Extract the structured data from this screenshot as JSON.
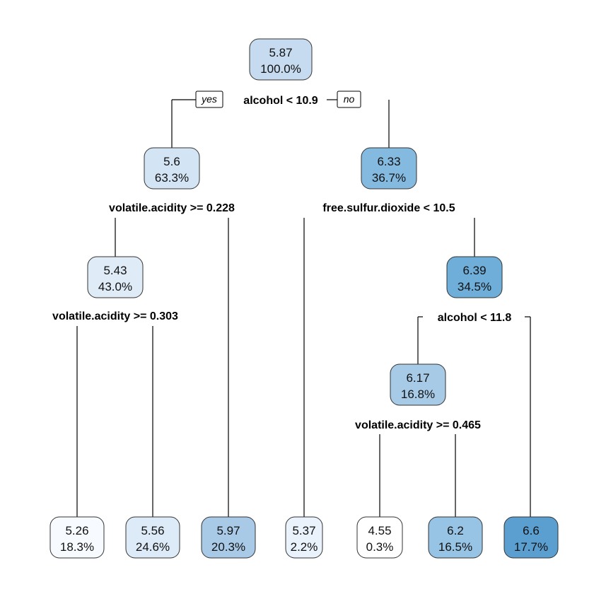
{
  "tree": {
    "branch_labels": {
      "yes": "yes",
      "no": "no"
    },
    "nodes": [
      {
        "id": "n1",
        "value": "5.87",
        "percent": "100.0%",
        "color": "#c6dbef"
      },
      {
        "id": "n2",
        "value": "5.6",
        "percent": "63.3%",
        "color": "#d3e4f4"
      },
      {
        "id": "n3",
        "value": "6.33",
        "percent": "36.7%",
        "color": "#84bae0"
      },
      {
        "id": "n4",
        "value": "5.43",
        "percent": "43.0%",
        "color": "#dfebf7"
      },
      {
        "id": "n7",
        "value": "6.39",
        "percent": "34.5%",
        "color": "#6eaed9"
      },
      {
        "id": "n14",
        "value": "6.17",
        "percent": "16.8%",
        "color": "#a7cae6"
      },
      {
        "id": "l1",
        "value": "5.26",
        "percent": "18.3%",
        "color": "#f7fbff"
      },
      {
        "id": "l2",
        "value": "5.56",
        "percent": "24.6%",
        "color": "#ddeaf7"
      },
      {
        "id": "l3",
        "value": "5.97",
        "percent": "20.3%",
        "color": "#a9cae6"
      },
      {
        "id": "l4",
        "value": "5.37",
        "percent": "2.2%",
        "color": "#eaf2fb"
      },
      {
        "id": "l5",
        "value": "4.55",
        "percent": "0.3%",
        "color": "#ffffff"
      },
      {
        "id": "l6",
        "value": "6.2",
        "percent": "16.5%",
        "color": "#97c3e4"
      },
      {
        "id": "l7",
        "value": "6.6",
        "percent": "17.7%",
        "color": "#5b9fd1"
      }
    ],
    "splits": [
      {
        "id": "s1",
        "label": "alcohol < 10.9"
      },
      {
        "id": "s2",
        "label": "volatile.acidity >= 0.228"
      },
      {
        "id": "s3",
        "label": "free.sulfur.dioxide < 10.5"
      },
      {
        "id": "s4",
        "label": "volatile.acidity >= 0.303"
      },
      {
        "id": "s5",
        "label": "alcohol < 11.8"
      },
      {
        "id": "s6",
        "label": "volatile.acidity >= 0.465"
      }
    ]
  }
}
